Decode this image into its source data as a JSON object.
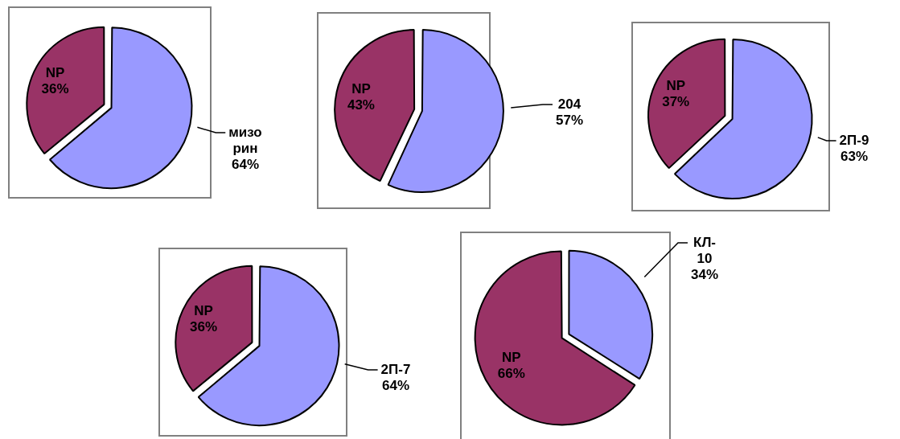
{
  "chart_data": [
    {
      "type": "pie",
      "categories": [
        "мизо рин",
        "NP"
      ],
      "values": [
        64,
        36
      ],
      "value_labels": [
        "64%",
        "36%"
      ],
      "colors": [
        "#9999ff",
        "#993366"
      ],
      "legend": false
    },
    {
      "type": "pie",
      "categories": [
        "204",
        "NP"
      ],
      "values": [
        57,
        43
      ],
      "value_labels": [
        "57%",
        "43%"
      ],
      "colors": [
        "#9999ff",
        "#993366"
      ],
      "legend": false
    },
    {
      "type": "pie",
      "categories": [
        "2П-9",
        "NP"
      ],
      "values": [
        63,
        37
      ],
      "value_labels": [
        "63%",
        "37%"
      ],
      "colors": [
        "#9999ff",
        "#993366"
      ],
      "legend": false
    },
    {
      "type": "pie",
      "categories": [
        "2П-7",
        "NP"
      ],
      "values": [
        64,
        36
      ],
      "value_labels": [
        "64%",
        "36%"
      ],
      "colors": [
        "#9999ff",
        "#993366"
      ],
      "legend": false
    },
    {
      "type": "pie",
      "categories": [
        "КЛ-10",
        "NP"
      ],
      "values": [
        34,
        66
      ],
      "value_labels": [
        "34%",
        "66%"
      ],
      "colors": [
        "#9999ff",
        "#993366"
      ],
      "legend": false
    }
  ]
}
